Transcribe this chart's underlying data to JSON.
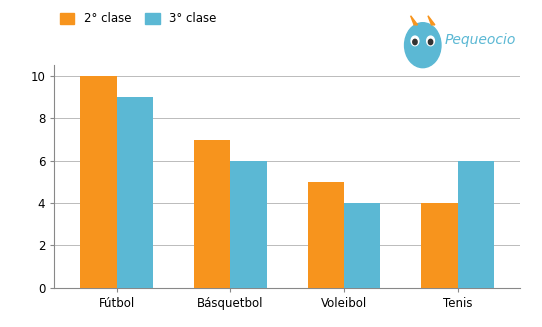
{
  "categories": [
    "Fútbol",
    "Básquetbol",
    "Voleibol",
    "Tenis"
  ],
  "series": {
    "2° clase": [
      10,
      7,
      5,
      4
    ],
    "3° clase": [
      9,
      6,
      4,
      6
    ]
  },
  "colors": {
    "2° clase": "#f7941d",
    "3° clase": "#5bb8d4"
  },
  "ylim": [
    0,
    10.5
  ],
  "yticks": [
    0,
    2,
    4,
    6,
    8,
    10
  ],
  "legend_labels": [
    "2° clase",
    "3° clase"
  ],
  "background_color": "#ffffff",
  "grid_color": "#bbbbbb",
  "bar_width": 0.32,
  "figsize": [
    5.42,
    3.27
  ],
  "dpi": 100,
  "spine_color": "#888888"
}
